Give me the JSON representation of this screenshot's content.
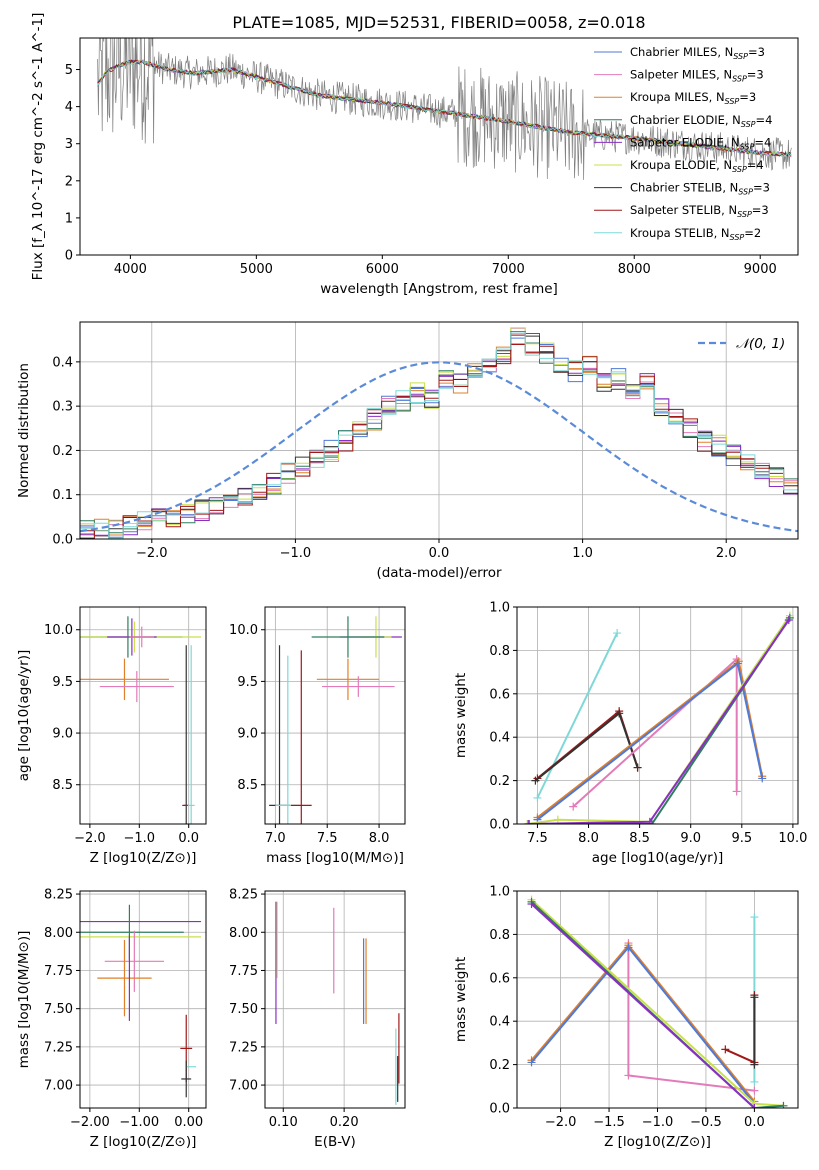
{
  "title": "PLATE=1085, MJD=52531, FIBERID=0058, z=0.018",
  "colors": {
    "chabrier_miles": "#4f7ad8",
    "salpeter_miles": "#e27bb8",
    "kroupa_miles": "#e0802a",
    "chabrier_elodie": "#2e7f5e",
    "salpeter_elodie": "#8a2fc4",
    "kroupa_elodie": "#c8e04a",
    "chabrier_stelib": "#333333",
    "salpeter_stelib": "#a01818",
    "kroupa_stelib": "#7fd8d8",
    "data": "#7f7f7f",
    "normal": "#5b8bd8"
  },
  "chart_data": [
    {
      "id": "spectrum",
      "type": "line",
      "xlabel": "wavelength [Angstrom, rest frame]",
      "ylabel": "Flux [f_λ 10^-17 erg cm^-2 s^-1 A^-1]",
      "xlim": [
        3600,
        9300
      ],
      "ylim": [
        0,
        5.85
      ],
      "xticks": [
        4000,
        5000,
        6000,
        7000,
        8000,
        9000
      ],
      "yticks": [
        0,
        1,
        2,
        3,
        4,
        5
      ],
      "legend_position": "upper right",
      "series": [
        {
          "key": "chabrier_miles",
          "label": "Chabrier MILES, N",
          "sub": "SSP",
          "suffix": "=3"
        },
        {
          "key": "salpeter_miles",
          "label": "Salpeter MILES, N",
          "sub": "SSP",
          "suffix": "=3"
        },
        {
          "key": "kroupa_miles",
          "label": "Kroupa MILES, N",
          "sub": "SSP",
          "suffix": "=3"
        },
        {
          "key": "chabrier_elodie",
          "label": "Chabrier ELODIE, N",
          "sub": "SSP",
          "suffix": "=4"
        },
        {
          "key": "salpeter_elodie",
          "label": "Salpeter ELODIE, N",
          "sub": "SSP",
          "suffix": "=4"
        },
        {
          "key": "kroupa_elodie",
          "label": "Kroupa ELODIE, N",
          "sub": "SSP",
          "suffix": "=4"
        },
        {
          "key": "chabrier_stelib",
          "label": "Chabrier STELIB, N",
          "sub": "SSP",
          "suffix": "=3"
        },
        {
          "key": "salpeter_stelib",
          "label": "Salpeter STELIB, N",
          "sub": "SSP",
          "suffix": "=3"
        },
        {
          "key": "kroupa_stelib",
          "label": "Kroupa STELIB, N",
          "sub": "SSP",
          "suffix": "=2"
        }
      ],
      "continuum": [
        [
          3740,
          4.6
        ],
        [
          3800,
          4.9
        ],
        [
          3900,
          5.1
        ],
        [
          4000,
          5.2
        ],
        [
          4100,
          5.2
        ],
        [
          4300,
          5.0
        ],
        [
          4500,
          4.9
        ],
        [
          4800,
          5.0
        ],
        [
          5000,
          4.8
        ],
        [
          5200,
          4.6
        ],
        [
          5500,
          4.3
        ],
        [
          6000,
          4.1
        ],
        [
          6500,
          3.85
        ],
        [
          7000,
          3.6
        ],
        [
          7500,
          3.3
        ],
        [
          8000,
          3.15
        ],
        [
          8500,
          2.95
        ],
        [
          9000,
          2.75
        ],
        [
          9250,
          2.7
        ]
      ]
    },
    {
      "id": "residuals",
      "type": "step",
      "xlabel": "(data-model)/error",
      "ylabel": "Normed distribution",
      "xlim": [
        -2.5,
        2.5
      ],
      "ylim": [
        0,
        0.49
      ],
      "xticks": [
        -2,
        -1,
        0,
        1,
        2
      ],
      "yticks": [
        0.0,
        0.1,
        0.2,
        0.3,
        0.4
      ],
      "bin_width": 0.1,
      "legend": "𝒩(0, 1)",
      "legend_position": "upper right",
      "base_hist": [
        0.02,
        0.022,
        0.025,
        0.03,
        0.04,
        0.045,
        0.05,
        0.06,
        0.065,
        0.075,
        0.085,
        0.1,
        0.11,
        0.125,
        0.15,
        0.165,
        0.18,
        0.2,
        0.22,
        0.24,
        0.27,
        0.3,
        0.31,
        0.33,
        0.32,
        0.36,
        0.35,
        0.38,
        0.4,
        0.41,
        0.46,
        0.44,
        0.42,
        0.4,
        0.38,
        0.39,
        0.35,
        0.36,
        0.33,
        0.36,
        0.3,
        0.28,
        0.25,
        0.22,
        0.21,
        0.19,
        0.17,
        0.16,
        0.14,
        0.12,
        0.11,
        0.09,
        0.08,
        0.07,
        0.06,
        0.05,
        0.04,
        0.035,
        0.03,
        0.025
      ]
    },
    {
      "id": "age_vs_Z",
      "type": "errorbar",
      "xlabel": "Z [log10(Z/Z⊙)]",
      "ylabel": "age  [log10(age/yr)]",
      "xlim": [
        -2.2,
        0.35
      ],
      "ylim": [
        8.12,
        10.22
      ],
      "xticks": [
        -2,
        -1,
        0
      ],
      "yticks": [
        8.5,
        9.0,
        9.5,
        10.0
      ],
      "points": [
        {
          "key": "chabrier_elodie",
          "x": -1.23,
          "xerr": 1.1,
          "y": 9.93,
          "yerr": 0.2
        },
        {
          "key": "kroupa_elodie",
          "x": -1.1,
          "xerr": 1.35,
          "y": 9.93,
          "yerr": 0.15
        },
        {
          "key": "salpeter_elodie",
          "x": -1.15,
          "xerr": 0.5,
          "y": 9.93,
          "yerr": 0.18
        },
        {
          "key": "salpeter_miles",
          "x": -0.95,
          "xerr": 0.25,
          "y": 9.93,
          "yerr": 0.1
        },
        {
          "key": "kroupa_miles",
          "x": -1.3,
          "xerr": 0.9,
          "y": 9.52,
          "yerr": 0.2
        },
        {
          "key": "salpeter_miles",
          "x": -1.05,
          "xerr": 0.75,
          "y": 9.45,
          "yerr": 0.15
        },
        {
          "key": "chabrier_stelib",
          "x": -0.05,
          "xerr": 0.05,
          "y": 8.3,
          "yerr": 1.55
        },
        {
          "key": "salpeter_stelib",
          "x": -0.08,
          "xerr": 0.05,
          "y": 8.3,
          "yerr": 0.0
        },
        {
          "key": "kroupa_stelib",
          "x": 0.05,
          "xerr": 0.07,
          "y": 8.3,
          "yerr": 1.55
        }
      ]
    },
    {
      "id": "age_vs_mass",
      "type": "errorbar",
      "xlabel": "mass [log10(M/M⊙)]",
      "ylabel": "",
      "xlim": [
        6.9,
        8.25
      ],
      "ylim": [
        8.12,
        10.22
      ],
      "xticks": [
        7.0,
        7.5,
        8.0
      ],
      "yticks": [
        8.5,
        9.0,
        9.5,
        10.0
      ],
      "points": [
        {
          "key": "salpeter_elodie",
          "x": 7.92,
          "xerr": 0.3,
          "y": 9.93,
          "yerr": 0.0
        },
        {
          "key": "kroupa_elodie",
          "x": 7.97,
          "xerr": 0.15,
          "y": 9.93,
          "yerr": 0.2
        },
        {
          "key": "chabrier_elodie",
          "x": 7.7,
          "xerr": 0.35,
          "y": 9.93,
          "yerr": 0.2
        },
        {
          "key": "kroupa_miles",
          "x": 7.7,
          "xerr": 0.3,
          "y": 9.52,
          "yerr": 0.2
        },
        {
          "key": "salpeter_miles",
          "x": 7.8,
          "xerr": 0.35,
          "y": 9.45,
          "yerr": 0.1
        },
        {
          "key": "chabrier_stelib",
          "x": 7.04,
          "xerr": 0.1,
          "y": 8.3,
          "yerr": 1.55
        },
        {
          "key": "kroupa_stelib",
          "x": 7.12,
          "xerr": 0.12,
          "y": 8.3,
          "yerr": 1.45
        },
        {
          "key": "salpeter_stelib",
          "x": 7.25,
          "xerr": 0.1,
          "y": 8.3,
          "yerr": 1.5
        }
      ]
    },
    {
      "id": "weight_vs_age",
      "type": "line",
      "xlabel": "age  [log10(age/yr)]",
      "ylabel": "mass weight",
      "xlim": [
        7.3,
        10.05
      ],
      "ylim": [
        0,
        1.0
      ],
      "xticks": [
        7.5,
        8.0,
        8.5,
        9.0,
        9.5,
        10.0
      ],
      "yticks": [
        0.0,
        0.2,
        0.4,
        0.6,
        0.8,
        1.0
      ],
      "series": [
        {
          "key": "kroupa_stelib",
          "x": [
            7.5,
            8.28
          ],
          "y": [
            0.12,
            0.88
          ]
        },
        {
          "key": "salpeter_stelib",
          "x": [
            7.5,
            8.3,
            8.48
          ],
          "y": [
            0.21,
            0.52,
            0.26
          ]
        },
        {
          "key": "chabrier_stelib",
          "x": [
            7.48,
            8.3,
            8.48
          ],
          "y": [
            0.2,
            0.51,
            0.26
          ]
        },
        {
          "key": "salpeter_miles",
          "x": [
            7.85,
            9.45,
            9.45
          ],
          "y": [
            0.08,
            0.76,
            0.15
          ]
        },
        {
          "key": "kroupa_miles",
          "x": [
            7.5,
            9.47,
            9.7
          ],
          "y": [
            0.03,
            0.75,
            0.22
          ]
        },
        {
          "key": "chabrier_miles",
          "x": [
            7.5,
            9.46,
            9.7
          ],
          "y": [
            0.02,
            0.74,
            0.21
          ]
        },
        {
          "key": "kroupa_elodie",
          "x": [
            7.4,
            7.7,
            8.6,
            9.97
          ],
          "y": [
            0.0,
            0.02,
            0.01,
            0.96
          ]
        },
        {
          "key": "chabrier_elodie",
          "x": [
            7.42,
            8.62,
            9.97
          ],
          "y": [
            0.0,
            0.0,
            0.95
          ]
        },
        {
          "key": "salpeter_elodie",
          "x": [
            7.41,
            8.6,
            9.96
          ],
          "y": [
            0.0,
            0.01,
            0.94
          ]
        }
      ]
    },
    {
      "id": "mass_vs_Z",
      "type": "errorbar",
      "xlabel": "Z [log10(Z/Z⊙)]",
      "ylabel": "mass [log10(M/M⊙)]",
      "xlim": [
        -2.2,
        0.35
      ],
      "ylim": [
        6.85,
        8.27
      ],
      "xticks": [
        -2,
        -1,
        0
      ],
      "yticks": [
        7.0,
        7.25,
        7.5,
        7.75,
        8.0,
        8.25
      ],
      "points": [
        {
          "key": "salpeter_elodie",
          "x": -1.0,
          "xerr": 1.25,
          "y": 8.07,
          "yerr": 0.0
        },
        {
          "key": "chabrier_elodie",
          "x": -1.2,
          "xerr": 1.1,
          "y": 8.0,
          "yerr": 0.18
        },
        {
          "key": "kroupa_elodie",
          "x": -1.0,
          "xerr": 1.25,
          "y": 7.97,
          "yerr": 0.0
        },
        {
          "key": "salpeter_miles",
          "x": -1.1,
          "xerr": 0.6,
          "y": 7.81,
          "yerr": 0.2
        },
        {
          "key": "kroupa_miles",
          "x": -1.3,
          "xerr": 0.55,
          "y": 7.7,
          "yerr": 0.25
        },
        {
          "key": "salpeter_elodie",
          "x": -1.2,
          "xerr": 0.0,
          "y": 7.7,
          "yerr": 0.28
        },
        {
          "key": "salpeter_stelib",
          "x": -0.05,
          "xerr": 0.12,
          "y": 7.24,
          "yerr": 0.22
        },
        {
          "key": "kroupa_stelib",
          "x": 0.05,
          "xerr": 0.1,
          "y": 7.12,
          "yerr": 0.0
        },
        {
          "key": "chabrier_stelib",
          "x": -0.05,
          "xerr": 0.1,
          "y": 7.04,
          "yerr": 0.12
        }
      ]
    },
    {
      "id": "mass_vs_ebv",
      "type": "errorbar",
      "xlabel": "E(B-V)",
      "ylabel": "",
      "xlim": [
        0.07,
        0.3
      ],
      "ylim": [
        6.85,
        8.27
      ],
      "xticks": [
        0.1,
        0.2
      ],
      "yticks": [
        7.0,
        7.25,
        7.5,
        7.75,
        8.0,
        8.25
      ],
      "points": [
        {
          "key": "salpeter_elodie",
          "x": 0.088,
          "xerr": 0,
          "y": 7.8,
          "yerr": 0.4
        },
        {
          "key": "kroupa_elodie",
          "x": 0.09,
          "xerr": 0,
          "y": 7.95,
          "yerr": 0.25
        },
        {
          "key": "salpeter_miles",
          "x": 0.183,
          "xerr": 0,
          "y": 7.88,
          "yerr": 0.28
        },
        {
          "key": "chabrier_miles",
          "x": 0.232,
          "xerr": 0,
          "y": 7.68,
          "yerr": 0.28
        },
        {
          "key": "kroupa_miles",
          "x": 0.236,
          "xerr": 0,
          "y": 7.68,
          "yerr": 0.28
        },
        {
          "key": "kroupa_stelib",
          "x": 0.285,
          "xerr": 0,
          "y": 7.12,
          "yerr": 0.25
        },
        {
          "key": "chabrier_stelib",
          "x": 0.288,
          "xerr": 0,
          "y": 7.04,
          "yerr": 0.15
        },
        {
          "key": "salpeter_stelib",
          "x": 0.29,
          "xerr": 0,
          "y": 7.24,
          "yerr": 0.23
        }
      ]
    },
    {
      "id": "weight_vs_Z",
      "type": "line",
      "xlabel": "Z [log10(Z/Z⊙)]",
      "ylabel": "mass weight",
      "xlim": [
        -2.45,
        0.45
      ],
      "ylim": [
        0,
        1.0
      ],
      "xticks": [
        -2.0,
        -1.5,
        -1.0,
        -0.5,
        0.0
      ],
      "yticks": [
        0.0,
        0.2,
        0.4,
        0.6,
        0.8,
        1.0
      ],
      "series": [
        {
          "key": "kroupa_stelib",
          "x": [
            0.0,
            0.0
          ],
          "y": [
            0.12,
            0.88
          ]
        },
        {
          "key": "salpeter_stelib",
          "x": [
            -0.3,
            0.0,
            0.0
          ],
          "y": [
            0.27,
            0.21,
            0.52
          ]
        },
        {
          "key": "chabrier_stelib",
          "x": [
            0.0,
            0.0
          ],
          "y": [
            0.2,
            0.51
          ]
        },
        {
          "key": "salpeter_miles",
          "x": [
            -1.3,
            -1.3,
            0.0
          ],
          "y": [
            0.76,
            0.15,
            0.08
          ]
        },
        {
          "key": "kroupa_miles",
          "x": [
            -2.3,
            -1.3,
            0.0
          ],
          "y": [
            0.22,
            0.75,
            0.03
          ]
        },
        {
          "key": "chabrier_miles",
          "x": [
            -2.3,
            -1.3,
            0.0
          ],
          "y": [
            0.21,
            0.74,
            0.02
          ]
        },
        {
          "key": "kroupa_elodie",
          "x": [
            -2.3,
            0.0,
            0.3
          ],
          "y": [
            0.96,
            0.02,
            0.01
          ]
        },
        {
          "key": "chabrier_elodie",
          "x": [
            -2.3,
            0.0,
            0.3
          ],
          "y": [
            0.95,
            0.0,
            0.01
          ]
        },
        {
          "key": "salpeter_elodie",
          "x": [
            -2.3,
            0.0
          ],
          "y": [
            0.94,
            0.0
          ]
        }
      ]
    }
  ]
}
